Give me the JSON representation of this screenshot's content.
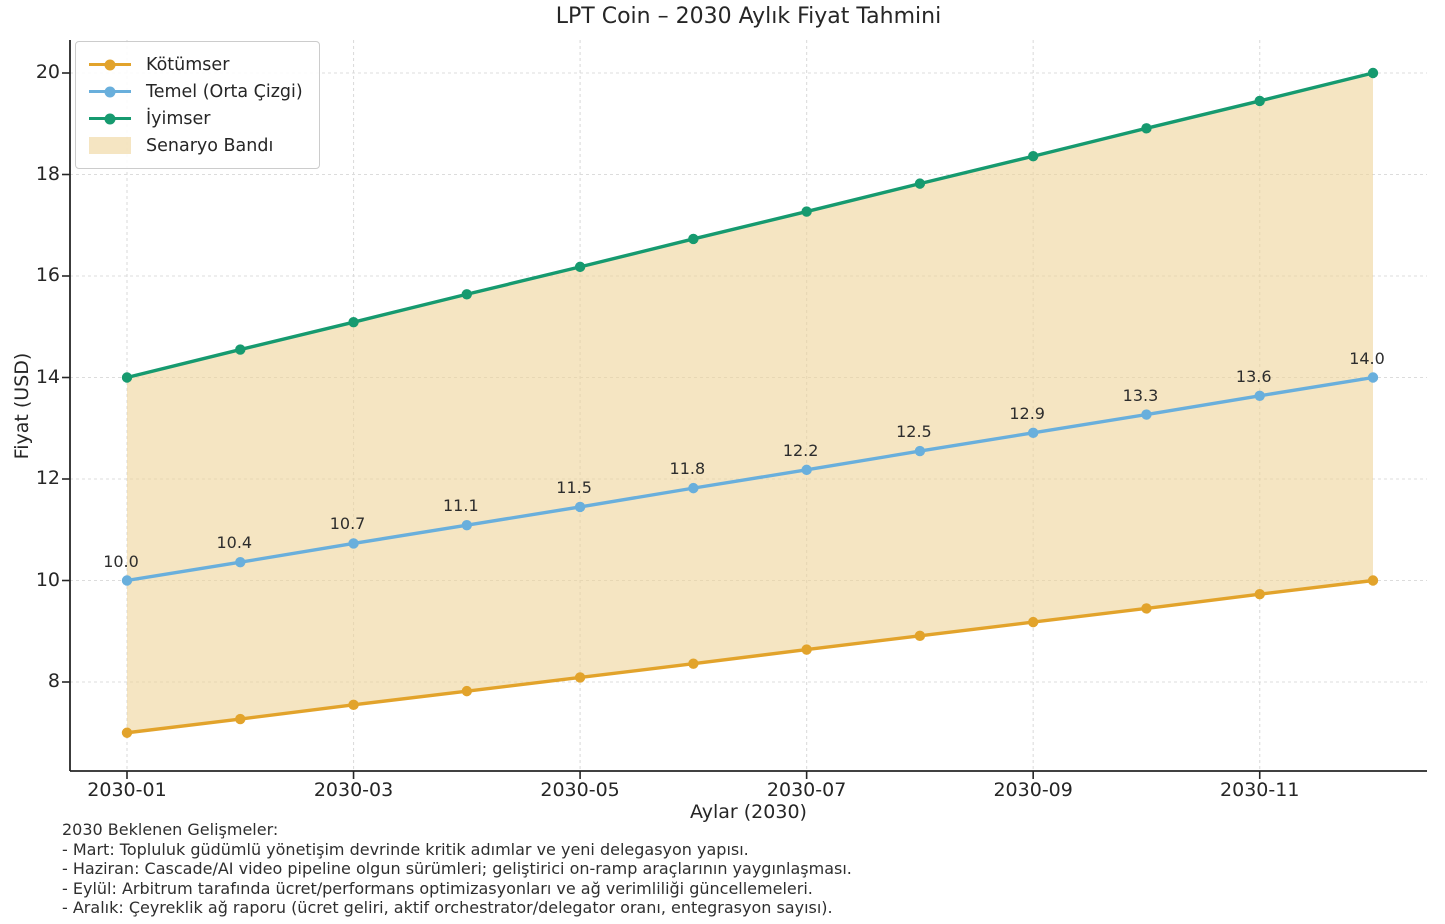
{
  "title": "LPT Coin – 2030 Aylık Fiyat Tahmini",
  "chart_data": {
    "type": "line",
    "title": "LPT Coin – 2030 Aylık Fiyat Tahmini",
    "xlabel": "Aylar (2030)",
    "ylabel": "Fiyat (USD)",
    "x": [
      "2030-01",
      "2030-02",
      "2030-03",
      "2030-04",
      "2030-05",
      "2030-06",
      "2030-07",
      "2030-08",
      "2030-09",
      "2030-10",
      "2030-11",
      "2030-12"
    ],
    "x_ticks": {
      "indices": [
        0,
        2,
        4,
        6,
        8,
        10
      ],
      "labels": [
        "2030-01",
        "2030-03",
        "2030-05",
        "2030-07",
        "2030-09",
        "2030-11"
      ]
    },
    "y_ticks": [
      8,
      10,
      12,
      14,
      16,
      18,
      20
    ],
    "ylim": [
      6.25,
      20.65
    ],
    "grid": true,
    "legend_position": "upper-left",
    "series": [
      {
        "name": "Kötümser",
        "color": "#E2A32B",
        "values": [
          7.0,
          7.27,
          7.55,
          7.82,
          8.09,
          8.36,
          8.64,
          8.91,
          9.18,
          9.45,
          9.73,
          10.0
        ]
      },
      {
        "name": "Temel (Orta Çizgi)",
        "color": "#69AFDC",
        "values": [
          10.0,
          10.36,
          10.73,
          11.09,
          11.45,
          11.82,
          12.18,
          12.55,
          12.91,
          13.27,
          13.64,
          14.0
        ],
        "point_labels": [
          "10.0",
          "10.4",
          "10.7",
          "11.1",
          "11.5",
          "11.8",
          "12.2",
          "12.5",
          "12.9",
          "13.3",
          "13.6",
          "14.0"
        ]
      },
      {
        "name": "İyimser",
        "color": "#169A6F",
        "values": [
          14.0,
          14.55,
          15.09,
          15.64,
          16.18,
          16.73,
          17.27,
          17.82,
          18.36,
          18.91,
          19.45,
          20.0
        ]
      }
    ],
    "band": {
      "name": "Senaryo Bandı",
      "color": "#EFD49A",
      "opacity": 0.6,
      "lower": [
        7.0,
        7.27,
        7.55,
        7.82,
        8.09,
        8.36,
        8.64,
        8.91,
        9.18,
        9.45,
        9.73,
        10.0
      ],
      "upper": [
        14.0,
        14.55,
        15.09,
        15.64,
        16.18,
        16.73,
        17.27,
        17.82,
        18.36,
        18.91,
        19.45,
        20.0
      ]
    }
  },
  "annotation": {
    "lines": [
      "2030 Beklenen Gelişmeler:",
      "- Mart: Topluluk güdümlü yönetişim devrinde kritik adımlar ve yeni delegasyon yapısı.",
      "- Haziran: Cascade/AI video pipeline olgun sürümleri; geliştirici on-ramp araçlarının yaygınlaşması.",
      "- Eylül: Arbitrum tarafında ücret/performans optimizasyonları ve ağ verimliliği güncellemeleri.",
      "- Aralık: Çeyreklik ağ raporu (ücret geliri, aktif orchestrator/delegator oranı, entegrasyon sayısı)."
    ]
  },
  "colors": {
    "grid": "#DCDCDC",
    "axis": "#262626",
    "text": "#262626"
  }
}
